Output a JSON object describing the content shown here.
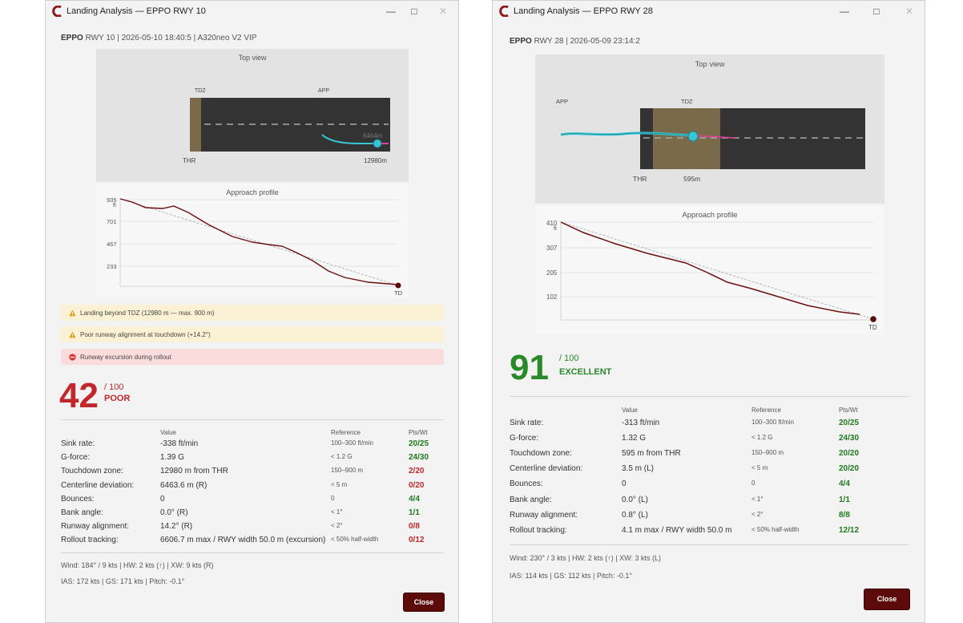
{
  "colors": {
    "brand": "#8b1a1a",
    "score_bad": "#c0282d",
    "score_good": "#2a8a2a",
    "pts_good": "#1f7a1f",
    "pts_bad": "#c0282d",
    "close_button": "#5c0a0a",
    "approach_track": "#38c6d6",
    "rollout_track": "#e040a0",
    "profile_line": "#6b0f0f",
    "tdz_zone": "#7a6a4a",
    "runway": "#333333"
  },
  "windows": [
    {
      "title": "Landing Analysis — EPPO RWY 10",
      "header_airport": "EPPO",
      "header_rest": " RWY 10 | 2026-05-10 18:40:5 | A320neo V2 VIP",
      "top_view": {
        "title": "Top view",
        "tdz_label": "TDZ",
        "app_label": "APP",
        "thr_label": "THR",
        "end_label": "12980m",
        "deviation_label": "6464m"
      },
      "profile": {
        "title": "Approach profile",
        "y_unit": "ft",
        "y_ticks": [
          "935",
          "701",
          "467",
          "233"
        ],
        "td_label": "TD"
      },
      "alerts": [
        {
          "kind": "warn",
          "icon": "warning-icon",
          "text": "Landing beyond TDZ (12980 m — max. 900 m)"
        },
        {
          "kind": "warn",
          "icon": "warning-icon",
          "text": "Poor runway alignment at touchdown (+14.2°)"
        },
        {
          "kind": "err",
          "icon": "no-entry-icon",
          "text": "Runway excursion during rollout"
        }
      ],
      "score": {
        "value": "42",
        "max": "/ 100",
        "grade": "POOR"
      },
      "table": {
        "headers": {
          "value": "Value",
          "reference": "Reference",
          "pts": "Pts/Wt"
        },
        "rows": [
          {
            "label": "Sink rate:",
            "value": "-338 ft/min",
            "ref": "100–300 ft/min",
            "pts": "20/25",
            "status": "good"
          },
          {
            "label": "G-force:",
            "value": "1.39 G",
            "ref": "< 1.2 G",
            "pts": "24/30",
            "status": "good"
          },
          {
            "label": "Touchdown zone:",
            "value": "12980 m from THR",
            "ref": "150–900 m",
            "pts": "2/20",
            "status": "bad"
          },
          {
            "label": "Centerline deviation:",
            "value": "6463.6 m (R)",
            "ref": "< 5 m",
            "pts": "0/20",
            "status": "bad"
          },
          {
            "label": "Bounces:",
            "value": "0",
            "ref": "0",
            "pts": "4/4",
            "status": "good"
          },
          {
            "label": "Bank angle:",
            "value": "0.0° (R)",
            "ref": "< 1°",
            "pts": "1/1",
            "status": "good"
          },
          {
            "label": "Runway alignment:",
            "value": "14.2° (R)",
            "ref": "< 2°",
            "pts": "0/8",
            "status": "bad"
          },
          {
            "label": "Rollout tracking:",
            "value": "6606.7 m max / RWY width 50.0 m (excursion)",
            "ref": "< 50% half-width",
            "pts": "0/12",
            "status": "bad"
          }
        ]
      },
      "footer": {
        "wind": "Wind: 184° / 9 kts  |  HW: 2 kts (↑)  |  XW: 9 kts (R)",
        "speed": "IAS: 172 kts  |  GS: 171 kts  |  Pitch: -0.1°"
      },
      "close_label": "Close"
    },
    {
      "title": "Landing Analysis — EPPO RWY 28",
      "header_airport": "EPPO",
      "header_rest": " RWY 28 | 2026-05-09 23:14:2",
      "top_view": {
        "title": "Top view",
        "tdz_label": "TDZ",
        "app_label": "APP",
        "thr_label": "THR",
        "tdz_distance_label": "595m"
      },
      "profile": {
        "title": "Approach profile",
        "y_unit": "ft",
        "y_ticks": [
          "410",
          "307",
          "205",
          "102"
        ],
        "td_label": "TD"
      },
      "score": {
        "value": "91",
        "max": "/ 100",
        "grade": "EXCELLENT"
      },
      "table": {
        "headers": {
          "value": "Value",
          "reference": "Reference",
          "pts": "Pts/Wt"
        },
        "rows": [
          {
            "label": "Sink rate:",
            "value": "-313 ft/min",
            "ref": "100–300 ft/min",
            "pts": "20/25",
            "status": "good"
          },
          {
            "label": "G-force:",
            "value": "1.32 G",
            "ref": "< 1.2 G",
            "pts": "24/30",
            "status": "good"
          },
          {
            "label": "Touchdown zone:",
            "value": "595 m from THR",
            "ref": "150–900 m",
            "pts": "20/20",
            "status": "good"
          },
          {
            "label": "Centerline deviation:",
            "value": "3.5 m (L)",
            "ref": "< 5 m",
            "pts": "20/20",
            "status": "good"
          },
          {
            "label": "Bounces:",
            "value": "0",
            "ref": "0",
            "pts": "4/4",
            "status": "good"
          },
          {
            "label": "Bank angle:",
            "value": "0.0° (L)",
            "ref": "< 1°",
            "pts": "1/1",
            "status": "good"
          },
          {
            "label": "Runway alignment:",
            "value": "0.8° (L)",
            "ref": "< 2°",
            "pts": "8/8",
            "status": "good"
          },
          {
            "label": "Rollout tracking:",
            "value": "4.1 m max / RWY width 50.0 m",
            "ref": "< 50% half-width",
            "pts": "12/12",
            "status": "good"
          }
        ]
      },
      "footer": {
        "wind": "Wind: 230° / 3 kts  |  HW: 2 kts (↑)  |  XW: 3 kts (L)",
        "speed": "IAS: 114 kts  |  GS: 112 kts  |  Pitch: -0.1°"
      },
      "close_label": "Close"
    }
  ]
}
